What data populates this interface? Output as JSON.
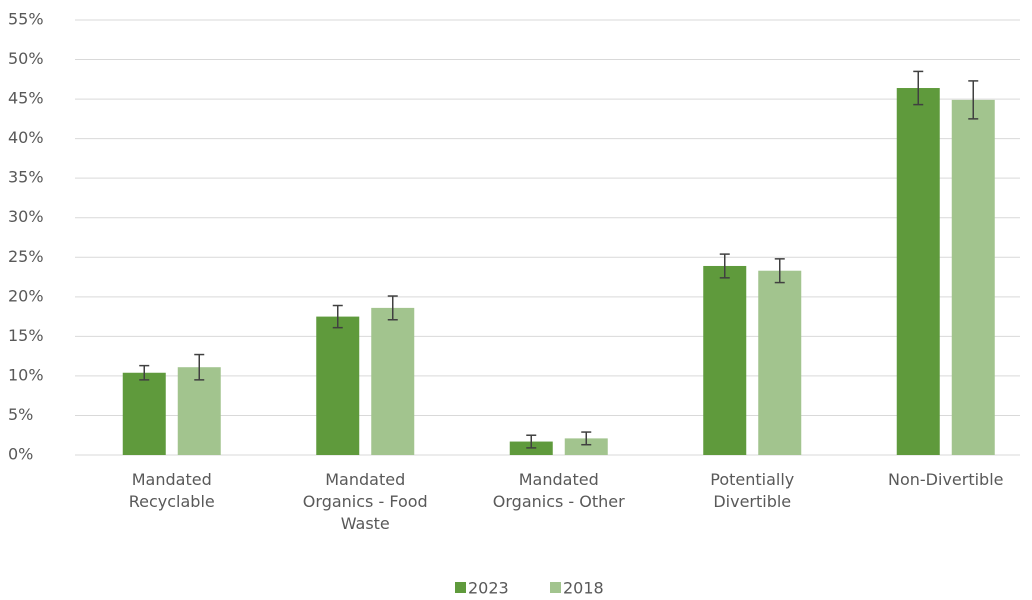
{
  "chart_data": {
    "type": "bar",
    "categories": [
      "Mandated Recyclable",
      "Mandated Organics - Food Waste",
      "Mandated Organics - Other",
      "Potentially Divertible",
      "Non-Divertible"
    ],
    "series": [
      {
        "name": "2023",
        "color": "#5f9a3c",
        "values": [
          10.4,
          17.5,
          1.7,
          23.9,
          46.4
        ],
        "errors": [
          0.9,
          1.4,
          0.8,
          1.5,
          2.1
        ]
      },
      {
        "name": "2018",
        "color": "#a2c48e",
        "values": [
          11.1,
          18.6,
          2.1,
          23.3,
          44.9
        ],
        "errors": [
          1.6,
          1.5,
          0.8,
          1.5,
          2.4
        ]
      }
    ],
    "ylim": [
      0,
      55
    ],
    "yticks": [
      {
        "value": 0,
        "label": "0%"
      },
      {
        "value": 5,
        "label": "5%"
      },
      {
        "value": 10,
        "label": "10%"
      },
      {
        "value": 15,
        "label": "15%"
      },
      {
        "value": 20,
        "label": "20%"
      },
      {
        "value": 25,
        "label": "25%"
      },
      {
        "value": 30,
        "label": "30%"
      },
      {
        "value": 35,
        "label": "35%"
      },
      {
        "value": 40,
        "label": "40%"
      },
      {
        "value": 45,
        "label": "45%"
      },
      {
        "value": 50,
        "label": "50%"
      },
      {
        "value": 55,
        "label": "55%"
      }
    ],
    "grid": true,
    "legend": "bottom"
  }
}
